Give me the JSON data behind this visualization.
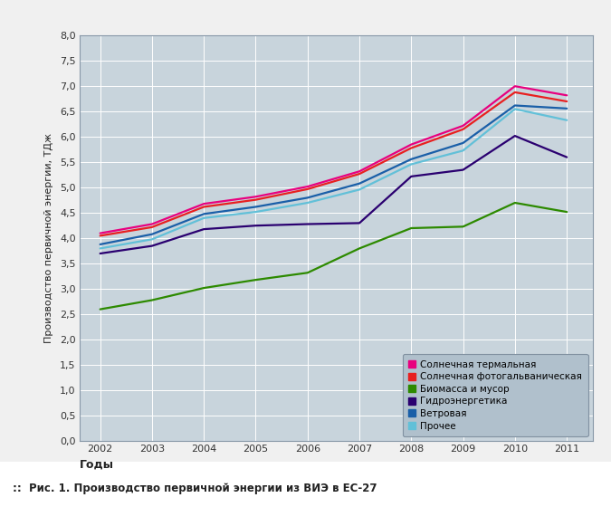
{
  "years": [
    2002,
    2003,
    2004,
    2005,
    2006,
    2007,
    2008,
    2009,
    2010,
    2011
  ],
  "series": {
    "solar_thermal": {
      "label": "Солнечная термальная",
      "color": "#e8007f",
      "values": [
        4.1,
        4.28,
        4.68,
        4.82,
        5.02,
        5.32,
        5.85,
        6.22,
        7.0,
        6.82
      ]
    },
    "solar_pv": {
      "label": "Солнечная фотогальваническая",
      "color": "#e82020",
      "values": [
        4.05,
        4.22,
        4.62,
        4.76,
        4.97,
        5.27,
        5.78,
        6.15,
        6.88,
        6.7
      ]
    },
    "biomass": {
      "label": "Биомасса и мусор",
      "color": "#2d8a00",
      "values": [
        2.6,
        2.78,
        3.02,
        3.18,
        3.32,
        3.8,
        4.2,
        4.23,
        4.7,
        4.52
      ]
    },
    "hydro": {
      "label": "Гидроэнергетика",
      "color": "#2a0070",
      "values": [
        3.7,
        3.85,
        4.18,
        4.25,
        4.28,
        4.3,
        5.22,
        5.35,
        6.02,
        5.6
      ]
    },
    "wind": {
      "label": "Ветровая",
      "color": "#1a5fa8",
      "values": [
        3.88,
        4.08,
        4.48,
        4.62,
        4.8,
        5.08,
        5.56,
        5.88,
        6.62,
        6.56
      ]
    },
    "other": {
      "label": "Прочее",
      "color": "#62c0d8",
      "values": [
        3.8,
        3.98,
        4.4,
        4.52,
        4.7,
        4.96,
        5.46,
        5.73,
        6.55,
        6.33
      ]
    }
  },
  "xlim": [
    2001.6,
    2011.5
  ],
  "ylim": [
    0,
    8.0
  ],
  "yticks": [
    0,
    0.5,
    1.0,
    1.5,
    2.0,
    2.5,
    3.0,
    3.5,
    4.0,
    4.5,
    5.0,
    5.5,
    6.0,
    6.5,
    7.0,
    7.5,
    8.0
  ],
  "xticks": [
    2002,
    2003,
    2004,
    2005,
    2006,
    2007,
    2008,
    2009,
    2010,
    2011
  ],
  "xlabel": "Годы",
  "ylabel": "Производство первичной энергии, ТДж",
  "outer_bg": "#f0f0f0",
  "plot_bg_color": "#c8d4dc",
  "grid_color": "#ffffff",
  "legend_bg": "#b0c0cc",
  "legend_edge": "#8090a0",
  "caption": "Рис. 1. Производство первичной энергии из ВИЭ в ЕС-27",
  "linewidth": 1.6
}
